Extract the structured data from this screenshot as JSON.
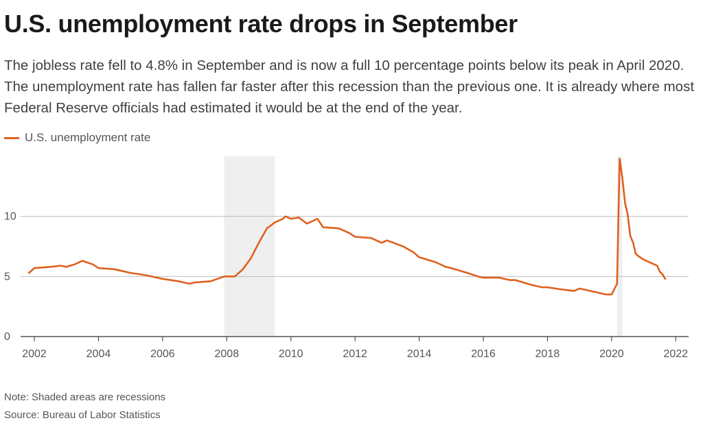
{
  "chart_data": {
    "type": "line",
    "title": "U.S. unemployment rate drops in September",
    "subtitle": "The jobless rate fell to 4.8% in September and is now a full 10 percentage points below its peak in April 2020. The unemployment rate has fallen far faster after this recession than the previous one. It is already where most Federal Reserve officials had estimated it would be at the end of the year.",
    "xlabel": "",
    "ylabel": "",
    "xlim": [
      2001.7,
      2022.4
    ],
    "ylim": [
      0,
      15
    ],
    "x_ticks": [
      2002,
      2004,
      2006,
      2008,
      2010,
      2012,
      2014,
      2016,
      2018,
      2020,
      2022
    ],
    "y_ticks": [
      0,
      5,
      10
    ],
    "grid": "horizontal",
    "legend_position": "top-left",
    "recessions": [
      {
        "start": 2007.92,
        "end": 2009.5
      },
      {
        "start": 2020.17,
        "end": 2020.33
      }
    ],
    "series": [
      {
        "name": "U.S. unemployment rate",
        "color": "#e0601e",
        "points": [
          [
            2001.83,
            5.3
          ],
          [
            2002.0,
            5.7
          ],
          [
            2002.5,
            5.8
          ],
          [
            2002.83,
            5.9
          ],
          [
            2003.0,
            5.8
          ],
          [
            2003.25,
            6.0
          ],
          [
            2003.5,
            6.3
          ],
          [
            2003.83,
            6.0
          ],
          [
            2004.0,
            5.7
          ],
          [
            2004.5,
            5.6
          ],
          [
            2004.83,
            5.4
          ],
          [
            2005.0,
            5.3
          ],
          [
            2005.5,
            5.1
          ],
          [
            2005.83,
            4.9
          ],
          [
            2006.0,
            4.8
          ],
          [
            2006.5,
            4.6
          ],
          [
            2006.83,
            4.4
          ],
          [
            2007.0,
            4.5
          ],
          [
            2007.5,
            4.6
          ],
          [
            2007.92,
            5.0
          ],
          [
            2008.25,
            5.0
          ],
          [
            2008.5,
            5.6
          ],
          [
            2008.75,
            6.5
          ],
          [
            2009.0,
            7.8
          ],
          [
            2009.25,
            9.0
          ],
          [
            2009.5,
            9.5
          ],
          [
            2009.75,
            9.8
          ],
          [
            2009.83,
            10.0
          ],
          [
            2010.0,
            9.8
          ],
          [
            2010.25,
            9.9
          ],
          [
            2010.5,
            9.4
          ],
          [
            2010.83,
            9.8
          ],
          [
            2011.0,
            9.1
          ],
          [
            2011.5,
            9.0
          ],
          [
            2011.83,
            8.6
          ],
          [
            2012.0,
            8.3
          ],
          [
            2012.5,
            8.2
          ],
          [
            2012.83,
            7.8
          ],
          [
            2013.0,
            8.0
          ],
          [
            2013.5,
            7.5
          ],
          [
            2013.83,
            7.0
          ],
          [
            2014.0,
            6.6
          ],
          [
            2014.5,
            6.2
          ],
          [
            2014.83,
            5.8
          ],
          [
            2015.0,
            5.7
          ],
          [
            2015.5,
            5.3
          ],
          [
            2015.83,
            5.0
          ],
          [
            2016.0,
            4.9
          ],
          [
            2016.5,
            4.9
          ],
          [
            2016.83,
            4.7
          ],
          [
            2017.0,
            4.7
          ],
          [
            2017.5,
            4.3
          ],
          [
            2017.83,
            4.1
          ],
          [
            2018.0,
            4.1
          ],
          [
            2018.5,
            3.9
          ],
          [
            2018.83,
            3.8
          ],
          [
            2019.0,
            4.0
          ],
          [
            2019.5,
            3.7
          ],
          [
            2019.83,
            3.5
          ],
          [
            2020.0,
            3.5
          ],
          [
            2020.17,
            4.4
          ],
          [
            2020.25,
            14.8
          ],
          [
            2020.33,
            13.3
          ],
          [
            2020.42,
            11.1
          ],
          [
            2020.5,
            10.2
          ],
          [
            2020.58,
            8.4
          ],
          [
            2020.67,
            7.8
          ],
          [
            2020.75,
            6.9
          ],
          [
            2020.83,
            6.7
          ],
          [
            2021.0,
            6.4
          ],
          [
            2021.25,
            6.1
          ],
          [
            2021.42,
            5.9
          ],
          [
            2021.5,
            5.4
          ],
          [
            2021.58,
            5.2
          ],
          [
            2021.67,
            4.8
          ]
        ]
      }
    ]
  },
  "notes": {
    "note": "Note: Shaded areas are recessions",
    "source": "Source: Bureau of Labor Statistics"
  }
}
